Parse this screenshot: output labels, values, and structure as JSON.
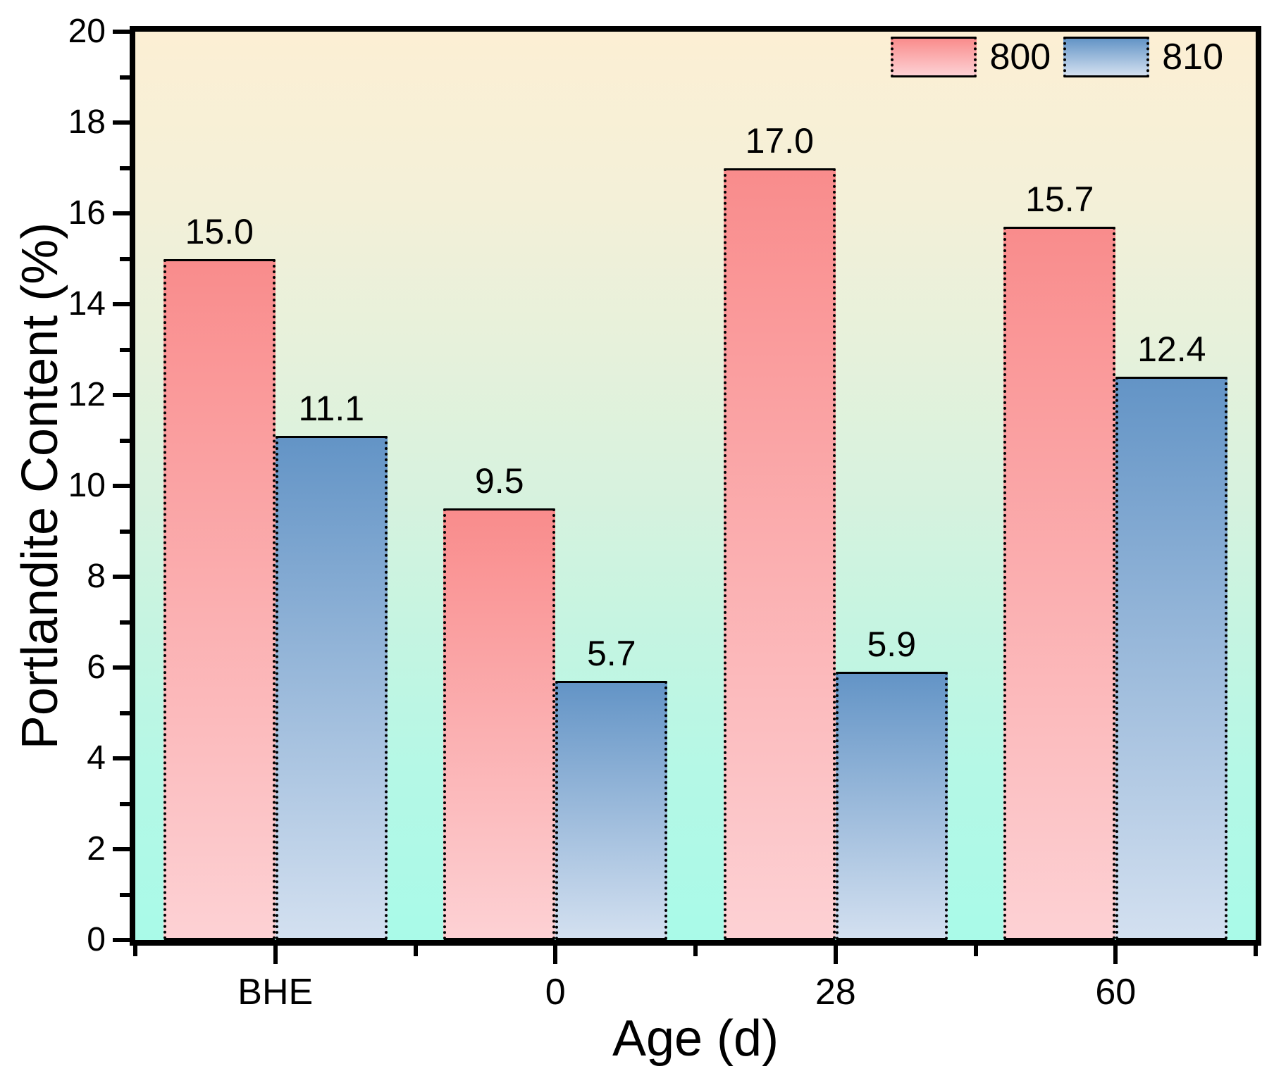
{
  "chart_data": {
    "type": "bar",
    "categories": [
      "BHE",
      "0",
      "28",
      "60"
    ],
    "series": [
      {
        "name": "800",
        "values": [
          15.0,
          9.5,
          17.0,
          15.7
        ],
        "color_top": "#F98C8C",
        "color_bottom": "#FDD1D4"
      },
      {
        "name": "810",
        "values": [
          11.1,
          5.7,
          5.9,
          12.4
        ],
        "color_top": "#6394C6",
        "color_bottom": "#D3E0F0"
      }
    ],
    "xlabel": "Age (d)",
    "ylabel": "Portlandite Content (%)",
    "ylim": [
      0,
      20
    ],
    "y_major_step": 2,
    "y_minor_step": 1,
    "y_tick_labels": [
      "0",
      "2",
      "4",
      "6",
      "8",
      "10",
      "12",
      "14",
      "16",
      "18",
      "20"
    ],
    "value_labels": [
      "15.0",
      "11.1",
      "9.5",
      "5.7",
      "17.0",
      "5.9",
      "15.7",
      "12.4"
    ],
    "value_label_format": "1-decimal",
    "legend_position": "top-right-inside",
    "legend_entries": [
      "800",
      "810"
    ],
    "grid": false,
    "plot_bg_gradient": [
      [
        "#FCEFD4",
        0
      ],
      [
        "#F4F0D8",
        18
      ],
      [
        "#E6F1DB",
        35
      ],
      [
        "#D8F2DE",
        50
      ],
      [
        "#C6F4E1",
        65
      ],
      [
        "#B4F8E6",
        82
      ],
      [
        "#A9FAE8",
        100
      ]
    ],
    "frame_color": "#000000",
    "text_color": "#000000"
  }
}
